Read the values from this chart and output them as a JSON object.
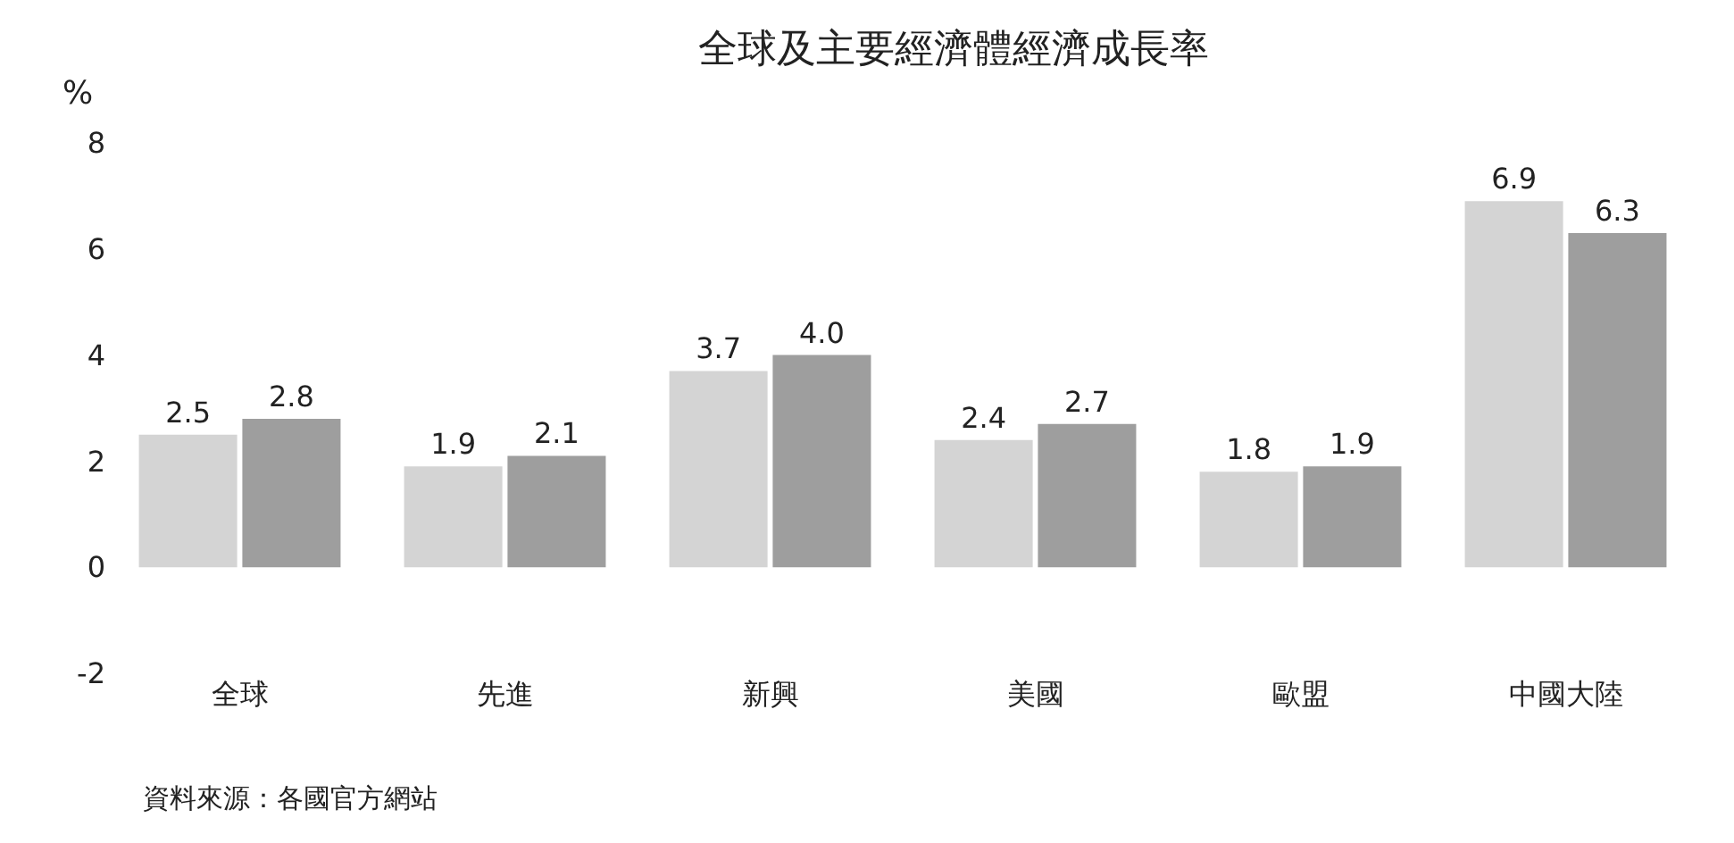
{
  "chart_data": {
    "type": "bar",
    "title": "全球及主要經濟體經濟成長率",
    "ylabel": "%",
    "categories": [
      "全球",
      "先進",
      "新興",
      "美國",
      "歐盟",
      "中國大陸"
    ],
    "series": [
      {
        "color": "#d4d4d4",
        "values": [
          2.5,
          1.9,
          3.7,
          2.4,
          1.8,
          6.9
        ],
        "value_labels": [
          "2.5",
          "1.9",
          "3.7",
          "2.4",
          "1.8",
          "6.9"
        ]
      },
      {
        "color": "#9e9e9e",
        "values": [
          2.8,
          2.1,
          4.0,
          2.7,
          1.9,
          6.3
        ],
        "value_labels": [
          "2.8",
          "2.1",
          "4.0",
          "2.7",
          "1.9",
          "6.3"
        ]
      }
    ],
    "ylim": [
      -2,
      8
    ],
    "yticks": [
      -2,
      0,
      2,
      4,
      6,
      8
    ],
    "annotations": [
      "資料來源：各國官方網站"
    ]
  }
}
